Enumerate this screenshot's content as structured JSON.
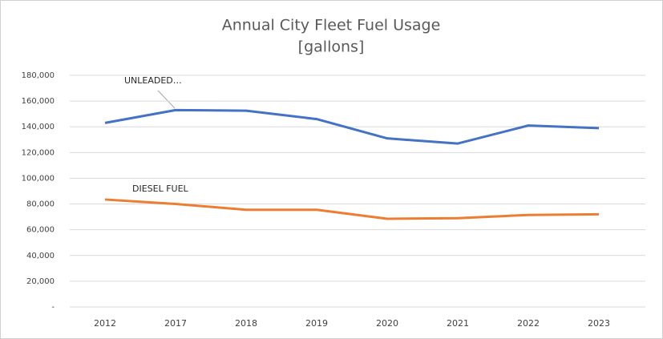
{
  "chart_data": {
    "type": "line",
    "title": "Annual City Fleet Fuel Usage",
    "subtitle": "[gallons]",
    "categories": [
      "2012",
      "2017",
      "2018",
      "2019",
      "2020",
      "2021",
      "2022",
      "2023"
    ],
    "series": [
      {
        "name": "UNLEADED…",
        "color": "#4472c4",
        "values": [
          143000,
          153000,
          152500,
          146000,
          131000,
          127000,
          141000,
          139000
        ]
      },
      {
        "name": "DIESEL FUEL",
        "color": "#ed7d31",
        "values": [
          83500,
          80000,
          75500,
          75500,
          68500,
          69000,
          71500,
          72000
        ]
      }
    ],
    "ylim": [
      0,
      180000
    ],
    "yticks": [
      {
        "value": 0,
        "label": "-"
      },
      {
        "value": 20000,
        "label": "20,000"
      },
      {
        "value": 40000,
        "label": "40,000"
      },
      {
        "value": 60000,
        "label": "60,000"
      },
      {
        "value": 80000,
        "label": "80,000"
      },
      {
        "value": 100000,
        "label": "100,000"
      },
      {
        "value": 120000,
        "label": "120,000"
      },
      {
        "value": 140000,
        "label": "140,000"
      },
      {
        "value": 160000,
        "label": "160,000"
      },
      {
        "value": 180000,
        "label": "180,000"
      }
    ],
    "grid": true
  }
}
